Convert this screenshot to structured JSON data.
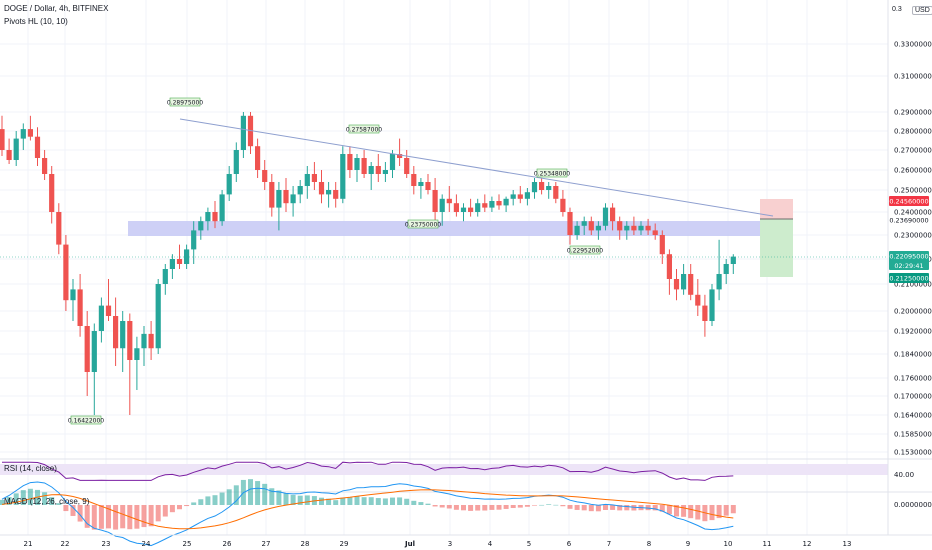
{
  "header": {
    "symbol_line": "DOGE / Dollar, 4h, BITFINEX",
    "pivots_label": "Pivots HL (10, 10)",
    "currency_badge": "USD",
    "top_price_partial": "0.3"
  },
  "price_axis": {
    "labels": [
      "0.33000000",
      "0.31000000",
      "0.29000000",
      "0.28000000",
      "0.27000000",
      "0.26000000",
      "0.25000000",
      "0.24000000",
      "0.23000000",
      "0.22000000",
      "0.21000000",
      "0.20000000",
      "0.19200000",
      "0.18400000",
      "0.17600000",
      "0.17000000",
      "0.16400000",
      "0.15850000",
      "0.15300000"
    ]
  },
  "price_tags": {
    "stop_loss": "0.24560000",
    "entry": "0.23690000",
    "current_price": "0.22095000",
    "countdown": "02:29:41",
    "take_profit": "0.21250000"
  },
  "pivots": [
    "0.28975000",
    "0.27587000",
    "0.23750000",
    "0.25348000",
    "0.22952000",
    "0.16422000"
  ],
  "rsi": {
    "label": "RSI (14, close)",
    "value_label": "40.00"
  },
  "macd": {
    "label": "MACD (12, 26, close, 9)",
    "value_label": "0.00000000"
  },
  "time_axis": {
    "labels": [
      "21",
      "22",
      "23",
      "24",
      "25",
      "26",
      "27",
      "28",
      "29",
      "Jul",
      "3",
      "4",
      "5",
      "6",
      "7",
      "8",
      "9",
      "10",
      "11",
      "12",
      "13"
    ]
  },
  "colors": {
    "up": "#26a69a",
    "down": "#ef5350",
    "zone": "#c5c8f5",
    "trendline": "#8e9fcf",
    "stop_zone": "#f8d0d0",
    "profit_zone": "#cdeccd",
    "rsi_line": "#7b1fa2",
    "rsi_band": "#ede4f7",
    "macd_line": "#2196f3",
    "signal_line": "#ff6d00",
    "price_line": "#22ab94"
  },
  "chart_data": {
    "type": "candlestick",
    "title": "DOGE / Dollar, 4h, BITFINEX",
    "ylim": [
      0.153,
      0.345
    ],
    "candles": [
      {
        "o": 0.281,
        "h": 0.288,
        "l": 0.267,
        "c": 0.27
      },
      {
        "o": 0.27,
        "h": 0.276,
        "l": 0.263,
        "c": 0.265
      },
      {
        "o": 0.265,
        "h": 0.28,
        "l": 0.262,
        "c": 0.276
      },
      {
        "o": 0.276,
        "h": 0.284,
        "l": 0.27,
        "c": 0.281
      },
      {
        "o": 0.281,
        "h": 0.288,
        "l": 0.275,
        "c": 0.277
      },
      {
        "o": 0.277,
        "h": 0.282,
        "l": 0.262,
        "c": 0.266
      },
      {
        "o": 0.266,
        "h": 0.27,
        "l": 0.255,
        "c": 0.258
      },
      {
        "o": 0.258,
        "h": 0.262,
        "l": 0.235,
        "c": 0.24
      },
      {
        "o": 0.24,
        "h": 0.244,
        "l": 0.222,
        "c": 0.226
      },
      {
        "o": 0.226,
        "h": 0.23,
        "l": 0.2,
        "c": 0.204
      },
      {
        "o": 0.204,
        "h": 0.212,
        "l": 0.196,
        "c": 0.208
      },
      {
        "o": 0.208,
        "h": 0.214,
        "l": 0.19,
        "c": 0.194
      },
      {
        "o": 0.194,
        "h": 0.2,
        "l": 0.17,
        "c": 0.178
      },
      {
        "o": 0.178,
        "h": 0.195,
        "l": 0.164,
        "c": 0.192
      },
      {
        "o": 0.192,
        "h": 0.205,
        "l": 0.188,
        "c": 0.202
      },
      {
        "o": 0.202,
        "h": 0.212,
        "l": 0.196,
        "c": 0.198
      },
      {
        "o": 0.198,
        "h": 0.205,
        "l": 0.18,
        "c": 0.186
      },
      {
        "o": 0.186,
        "h": 0.2,
        "l": 0.178,
        "c": 0.196
      },
      {
        "o": 0.196,
        "h": 0.199,
        "l": 0.164,
        "c": 0.182
      },
      {
        "o": 0.182,
        "h": 0.19,
        "l": 0.172,
        "c": 0.186
      },
      {
        "o": 0.186,
        "h": 0.194,
        "l": 0.18,
        "c": 0.191
      },
      {
        "o": 0.191,
        "h": 0.196,
        "l": 0.182,
        "c": 0.186
      },
      {
        "o": 0.186,
        "h": 0.212,
        "l": 0.184,
        "c": 0.21
      },
      {
        "o": 0.21,
        "h": 0.218,
        "l": 0.206,
        "c": 0.216
      },
      {
        "o": 0.216,
        "h": 0.222,
        "l": 0.212,
        "c": 0.22
      },
      {
        "o": 0.22,
        "h": 0.226,
        "l": 0.216,
        "c": 0.218
      },
      {
        "o": 0.218,
        "h": 0.226,
        "l": 0.216,
        "c": 0.224
      },
      {
        "o": 0.224,
        "h": 0.236,
        "l": 0.218,
        "c": 0.232
      },
      {
        "o": 0.232,
        "h": 0.238,
        "l": 0.228,
        "c": 0.236
      },
      {
        "o": 0.236,
        "h": 0.242,
        "l": 0.232,
        "c": 0.24
      },
      {
        "o": 0.24,
        "h": 0.245,
        "l": 0.233,
        "c": 0.236
      },
      {
        "o": 0.236,
        "h": 0.25,
        "l": 0.234,
        "c": 0.248
      },
      {
        "o": 0.248,
        "h": 0.262,
        "l": 0.245,
        "c": 0.258
      },
      {
        "o": 0.258,
        "h": 0.274,
        "l": 0.254,
        "c": 0.27
      },
      {
        "o": 0.27,
        "h": 0.29,
        "l": 0.266,
        "c": 0.288
      },
      {
        "o": 0.288,
        "h": 0.29,
        "l": 0.268,
        "c": 0.272
      },
      {
        "o": 0.272,
        "h": 0.276,
        "l": 0.256,
        "c": 0.26
      },
      {
        "o": 0.26,
        "h": 0.265,
        "l": 0.25,
        "c": 0.254
      },
      {
        "o": 0.254,
        "h": 0.258,
        "l": 0.238,
        "c": 0.242
      },
      {
        "o": 0.242,
        "h": 0.254,
        "l": 0.232,
        "c": 0.25
      },
      {
        "o": 0.25,
        "h": 0.256,
        "l": 0.24,
        "c": 0.244
      },
      {
        "o": 0.244,
        "h": 0.252,
        "l": 0.238,
        "c": 0.248
      },
      {
        "o": 0.248,
        "h": 0.255,
        "l": 0.244,
        "c": 0.252
      },
      {
        "o": 0.252,
        "h": 0.262,
        "l": 0.246,
        "c": 0.258
      },
      {
        "o": 0.258,
        "h": 0.264,
        "l": 0.25,
        "c": 0.254
      },
      {
        "o": 0.254,
        "h": 0.26,
        "l": 0.244,
        "c": 0.248
      },
      {
        "o": 0.248,
        "h": 0.254,
        "l": 0.242,
        "c": 0.25
      },
      {
        "o": 0.25,
        "h": 0.254,
        "l": 0.242,
        "c": 0.246
      },
      {
        "o": 0.246,
        "h": 0.272,
        "l": 0.244,
        "c": 0.268
      },
      {
        "o": 0.268,
        "h": 0.272,
        "l": 0.256,
        "c": 0.26
      },
      {
        "o": 0.26,
        "h": 0.268,
        "l": 0.254,
        "c": 0.266
      },
      {
        "o": 0.266,
        "h": 0.27,
        "l": 0.256,
        "c": 0.258
      },
      {
        "o": 0.258,
        "h": 0.264,
        "l": 0.25,
        "c": 0.262
      },
      {
        "o": 0.262,
        "h": 0.268,
        "l": 0.254,
        "c": 0.258
      },
      {
        "o": 0.258,
        "h": 0.264,
        "l": 0.254,
        "c": 0.26
      },
      {
        "o": 0.26,
        "h": 0.27,
        "l": 0.256,
        "c": 0.268
      },
      {
        "o": 0.268,
        "h": 0.276,
        "l": 0.262,
        "c": 0.266
      },
      {
        "o": 0.266,
        "h": 0.27,
        "l": 0.256,
        "c": 0.258
      },
      {
        "o": 0.258,
        "h": 0.262,
        "l": 0.248,
        "c": 0.252
      },
      {
        "o": 0.252,
        "h": 0.256,
        "l": 0.246,
        "c": 0.254
      },
      {
        "o": 0.254,
        "h": 0.258,
        "l": 0.248,
        "c": 0.25
      },
      {
        "o": 0.25,
        "h": 0.256,
        "l": 0.236,
        "c": 0.24
      },
      {
        "o": 0.24,
        "h": 0.248,
        "l": 0.234,
        "c": 0.246
      },
      {
        "o": 0.246,
        "h": 0.252,
        "l": 0.24,
        "c": 0.244
      },
      {
        "o": 0.244,
        "h": 0.248,
        "l": 0.238,
        "c": 0.24
      },
      {
        "o": 0.24,
        "h": 0.244,
        "l": 0.236,
        "c": 0.242
      },
      {
        "o": 0.242,
        "h": 0.246,
        "l": 0.238,
        "c": 0.24
      },
      {
        "o": 0.24,
        "h": 0.246,
        "l": 0.238,
        "c": 0.244
      },
      {
        "o": 0.244,
        "h": 0.248,
        "l": 0.24,
        "c": 0.242
      },
      {
        "o": 0.242,
        "h": 0.247,
        "l": 0.24,
        "c": 0.245
      },
      {
        "o": 0.245,
        "h": 0.248,
        "l": 0.241,
        "c": 0.243
      },
      {
        "o": 0.243,
        "h": 0.247,
        "l": 0.24,
        "c": 0.246
      },
      {
        "o": 0.246,
        "h": 0.25,
        "l": 0.243,
        "c": 0.248
      },
      {
        "o": 0.248,
        "h": 0.252,
        "l": 0.244,
        "c": 0.246
      },
      {
        "o": 0.246,
        "h": 0.251,
        "l": 0.243,
        "c": 0.249
      },
      {
        "o": 0.249,
        "h": 0.256,
        "l": 0.246,
        "c": 0.254
      },
      {
        "o": 0.254,
        "h": 0.256,
        "l": 0.248,
        "c": 0.25
      },
      {
        "o": 0.25,
        "h": 0.254,
        "l": 0.246,
        "c": 0.252
      },
      {
        "o": 0.252,
        "h": 0.254,
        "l": 0.244,
        "c": 0.246
      },
      {
        "o": 0.246,
        "h": 0.25,
        "l": 0.238,
        "c": 0.24
      },
      {
        "o": 0.24,
        "h": 0.242,
        "l": 0.226,
        "c": 0.23
      },
      {
        "o": 0.23,
        "h": 0.236,
        "l": 0.228,
        "c": 0.234
      },
      {
        "o": 0.234,
        "h": 0.238,
        "l": 0.23,
        "c": 0.236
      },
      {
        "o": 0.236,
        "h": 0.238,
        "l": 0.23,
        "c": 0.232
      },
      {
        "o": 0.232,
        "h": 0.236,
        "l": 0.228,
        "c": 0.234
      },
      {
        "o": 0.234,
        "h": 0.244,
        "l": 0.232,
        "c": 0.242
      },
      {
        "o": 0.242,
        "h": 0.244,
        "l": 0.232,
        "c": 0.236
      },
      {
        "o": 0.236,
        "h": 0.238,
        "l": 0.228,
        "c": 0.232
      },
      {
        "o": 0.232,
        "h": 0.236,
        "l": 0.228,
        "c": 0.234
      },
      {
        "o": 0.234,
        "h": 0.238,
        "l": 0.23,
        "c": 0.232
      },
      {
        "o": 0.232,
        "h": 0.236,
        "l": 0.23,
        "c": 0.234
      },
      {
        "o": 0.234,
        "h": 0.237,
        "l": 0.23,
        "c": 0.232
      },
      {
        "o": 0.232,
        "h": 0.235,
        "l": 0.228,
        "c": 0.23
      },
      {
        "o": 0.23,
        "h": 0.232,
        "l": 0.218,
        "c": 0.222
      },
      {
        "o": 0.222,
        "h": 0.224,
        "l": 0.206,
        "c": 0.212
      },
      {
        "o": 0.212,
        "h": 0.216,
        "l": 0.204,
        "c": 0.208
      },
      {
        "o": 0.208,
        "h": 0.218,
        "l": 0.206,
        "c": 0.214
      },
      {
        "o": 0.214,
        "h": 0.218,
        "l": 0.204,
        "c": 0.206
      },
      {
        "o": 0.206,
        "h": 0.212,
        "l": 0.198,
        "c": 0.202
      },
      {
        "o": 0.202,
        "h": 0.206,
        "l": 0.19,
        "c": 0.196
      },
      {
        "o": 0.196,
        "h": 0.21,
        "l": 0.194,
        "c": 0.208
      },
      {
        "o": 0.208,
        "h": 0.228,
        "l": 0.204,
        "c": 0.214
      },
      {
        "o": 0.214,
        "h": 0.22,
        "l": 0.21,
        "c": 0.218
      },
      {
        "o": 0.218,
        "h": 0.222,
        "l": 0.214,
        "c": 0.221
      }
    ]
  }
}
